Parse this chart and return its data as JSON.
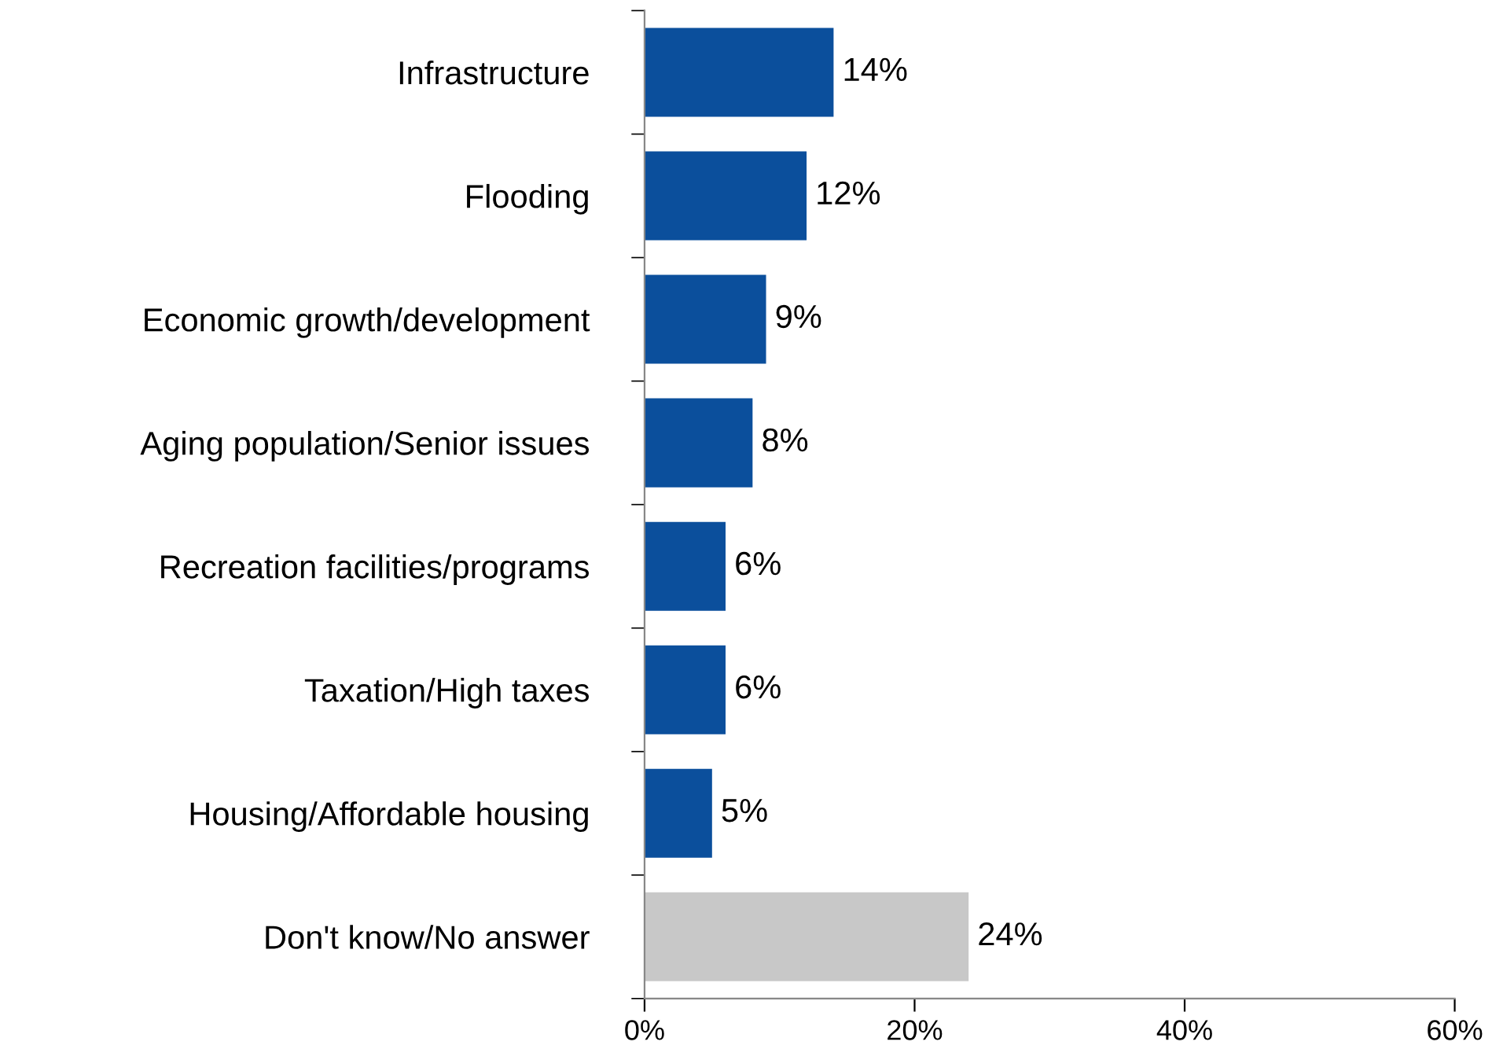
{
  "chart_data": {
    "type": "bar",
    "orientation": "horizontal",
    "categories": [
      "Infrastructure",
      "Flooding",
      "Economic growth/development",
      "Aging population/Senior issues",
      "Recreation facilities/programs",
      "Taxation/High taxes",
      "Housing/Affordable housing",
      "Don't know/No answer"
    ],
    "values": [
      14,
      12,
      9,
      8,
      6,
      6,
      5,
      24
    ],
    "colors": [
      "#0b4f9c",
      "#0b4f9c",
      "#0b4f9c",
      "#0b4f9c",
      "#0b4f9c",
      "#0b4f9c",
      "#0b4f9c",
      "#c8c8c8"
    ],
    "value_labels": [
      "14%",
      "12%",
      "9%",
      "8%",
      "6%",
      "6%",
      "5%",
      "24%"
    ],
    "xlim": [
      0,
      60
    ],
    "xticks": [
      {
        "value": 0,
        "label": "0%"
      },
      {
        "value": 20,
        "label": "20%"
      },
      {
        "value": 40,
        "label": "40%"
      },
      {
        "value": 60,
        "label": "60%"
      }
    ],
    "grid": false,
    "legend": false
  }
}
